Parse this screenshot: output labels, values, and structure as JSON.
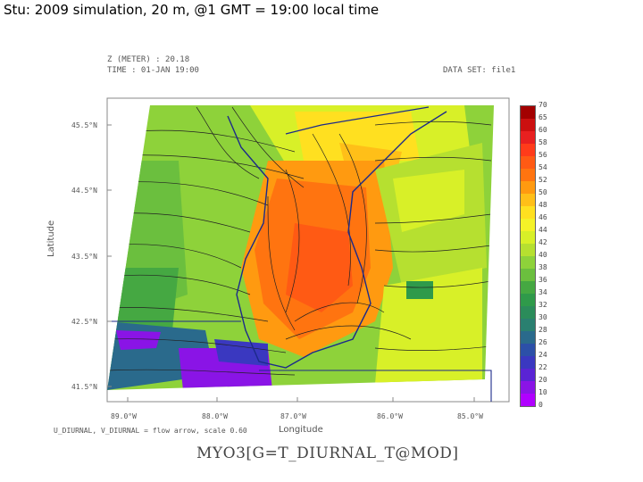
{
  "slide": {
    "title": "Stu: 2009 simulation, 20 m, @1 GMT = 19:00 local time"
  },
  "plot": {
    "header_line1": "Z (METER) : 20.18",
    "header_line2": "TIME : 01-JAN 19:00",
    "dataset_label": "DATA SET: file1",
    "y_axis_title": "Latitude",
    "x_axis_title": "Longitude",
    "lat_ticks": [
      "45.5°N",
      "44.5°N",
      "43.5°N",
      "42.5°N",
      "41.5°N"
    ],
    "lon_ticks": [
      "89.0°W",
      "88.0°W",
      "87.0°W",
      "86.0°W",
      "85.0°W"
    ],
    "footnote": "U_DIURNAL, V_DIURNAL = flow arrow, scale 0.60",
    "bottom_title": "MYO3[G=T_DIURNAL_T@MOD]"
  },
  "colorbar": {
    "levels": [
      "70",
      "65",
      "60",
      "58",
      "56",
      "54",
      "52",
      "50",
      "48",
      "46",
      "44",
      "42",
      "40",
      "38",
      "36",
      "34",
      "32",
      "30",
      "28",
      "26",
      "24",
      "22",
      "20",
      "10",
      "0"
    ],
    "colors": [
      "#a30000",
      "#cc1010",
      "#e82020",
      "#ff3b1a",
      "#ff5a14",
      "#ff7410",
      "#ff9a10",
      "#ffbf18",
      "#ffe020",
      "#f4f228",
      "#d8f028",
      "#b6e030",
      "#8ed23a",
      "#6bbf3e",
      "#45a842",
      "#2f9a4a",
      "#2b8c5a",
      "#2a8070",
      "#2a6a8c",
      "#2c50a8",
      "#3a38c0",
      "#5a24d4",
      "#8a14e6",
      "#b000ff"
    ]
  },
  "chart_data": {
    "type": "heatmap",
    "title": "Z (METER) : 20.18 / TIME : 01-JAN 19:00",
    "xlabel": "Longitude",
    "ylabel": "Latitude",
    "x_ticks": [
      "89.0°W",
      "88.0°W",
      "87.0°W",
      "86.0°W",
      "85.0°W"
    ],
    "y_ticks": [
      "45.5°N",
      "44.5°N",
      "43.5°N",
      "42.5°N",
      "41.5°N"
    ],
    "xlim": [
      -89.0,
      -85.0
    ],
    "ylim": [
      41.5,
      45.5
    ],
    "colorbar_levels": [
      0,
      10,
      20,
      22,
      24,
      26,
      28,
      30,
      32,
      34,
      36,
      38,
      40,
      42,
      44,
      46,
      48,
      50,
      52,
      54,
      56,
      58,
      60,
      65,
      70
    ],
    "overlay": "flow arrows (U_DIURNAL, V_DIURNAL)"
  }
}
